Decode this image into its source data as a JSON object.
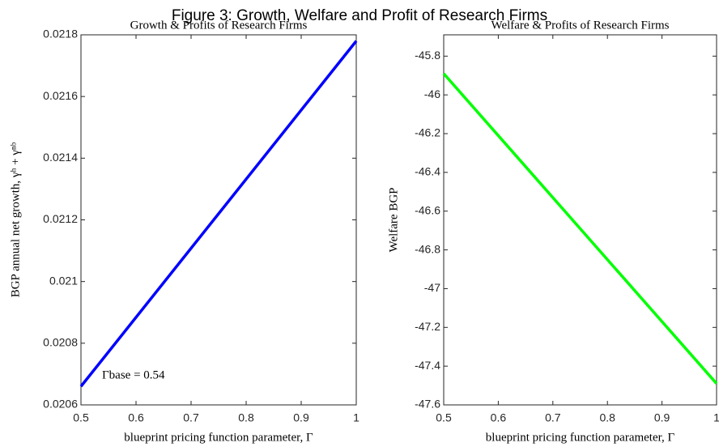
{
  "title": "Figure 3: Growth, Welfare and Profit of Research Firms",
  "chart_data": [
    {
      "type": "line",
      "title": "Growth & Profits of Research Firms",
      "xlabel": "blueprint pricing function parameter, Γ",
      "ylabel": "BGP annual net growth, γʰ + γⁿᵇ",
      "annotation": "Γbase = 0.54",
      "x": [
        0.5,
        1
      ],
      "series": [
        {
          "color": "#0000ff",
          "values": [
            0.02066,
            0.02178
          ]
        }
      ],
      "xlim": [
        0.5,
        1
      ],
      "xticks": [
        0.5,
        0.6,
        0.7,
        0.8,
        0.9,
        1
      ],
      "ylim": [
        0.0206,
        0.0218
      ],
      "yticks": [
        0.0206,
        0.0208,
        0.021,
        0.0212,
        0.0214,
        0.0216,
        0.0218
      ]
    },
    {
      "type": "line",
      "title": "Welfare & Profits of Research Firms",
      "xlabel": "blueprint pricing function parameter, Γ",
      "ylabel": "Welfare BGP",
      "x": [
        0.5,
        1
      ],
      "series": [
        {
          "color": "#00ff00",
          "values": [
            -45.89,
            -47.49
          ]
        }
      ],
      "xlim": [
        0.5,
        1
      ],
      "xticks": [
        0.5,
        0.6,
        0.7,
        0.8,
        0.9,
        1
      ],
      "ylim": [
        -47.6,
        -45.69
      ],
      "yticks": [
        -47.6,
        -47.4,
        -47.2,
        -47,
        -46.8,
        -46.6,
        -46.4,
        -46.2,
        -46,
        -45.8
      ]
    }
  ]
}
